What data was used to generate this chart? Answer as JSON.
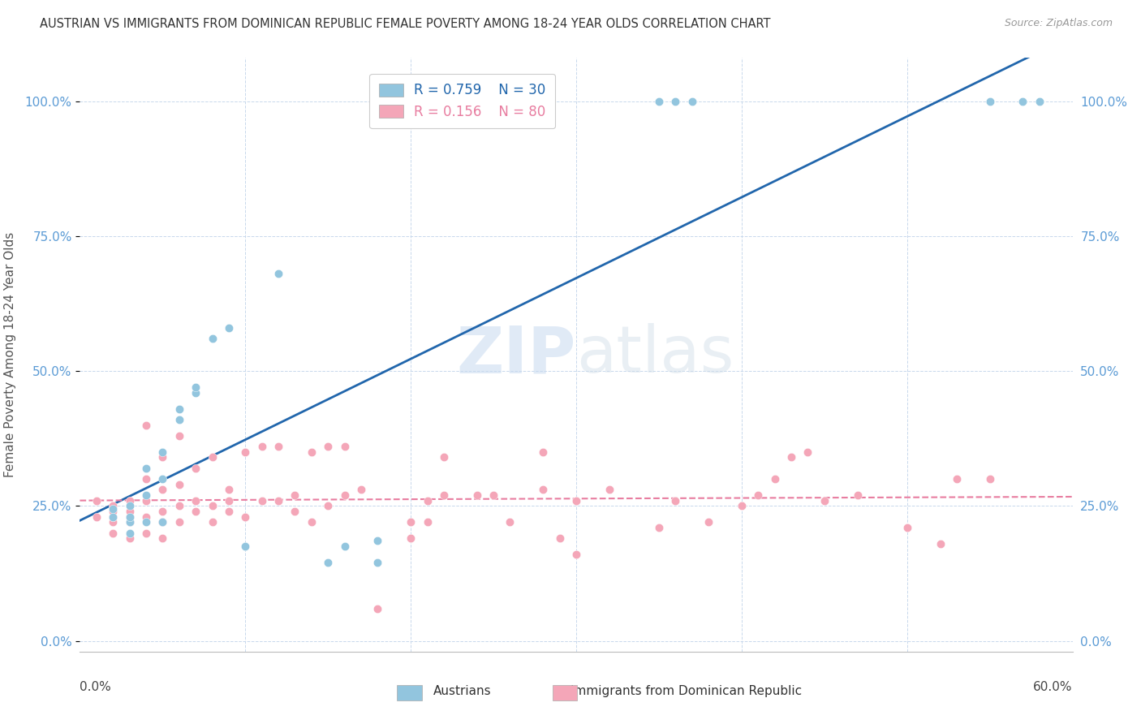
{
  "title": "AUSTRIAN VS IMMIGRANTS FROM DOMINICAN REPUBLIC FEMALE POVERTY AMONG 18-24 YEAR OLDS CORRELATION CHART",
  "source": "Source: ZipAtlas.com",
  "ylabel": "Female Poverty Among 18-24 Year Olds",
  "xlim": [
    0.0,
    0.6
  ],
  "ylim": [
    -0.02,
    1.08
  ],
  "yticks": [
    0.0,
    0.25,
    0.5,
    0.75,
    1.0
  ],
  "ytick_labels": [
    "0.0%",
    "25.0%",
    "50.0%",
    "75.0%",
    "100.0%"
  ],
  "xtick_positions": [
    0.0,
    0.1,
    0.2,
    0.3,
    0.4,
    0.5,
    0.6
  ],
  "blue_color": "#92c5de",
  "pink_color": "#f4a6b8",
  "blue_line_color": "#2166ac",
  "pink_line_color": "#e87da0",
  "legend_r_blue": "R = 0.759",
  "legend_n_blue": "N = 30",
  "legend_r_pink": "R = 0.156",
  "legend_n_pink": "N = 80",
  "watermark_zip": "ZIP",
  "watermark_atlas": "atlas",
  "blue_scatter_x": [
    0.02,
    0.02,
    0.03,
    0.03,
    0.03,
    0.03,
    0.04,
    0.04,
    0.04,
    0.05,
    0.05,
    0.05,
    0.06,
    0.06,
    0.07,
    0.07,
    0.08,
    0.09,
    0.1,
    0.12,
    0.15,
    0.16,
    0.18,
    0.18,
    0.35,
    0.36,
    0.37,
    0.55,
    0.57,
    0.58
  ],
  "blue_scatter_y": [
    0.23,
    0.245,
    0.2,
    0.22,
    0.23,
    0.25,
    0.22,
    0.27,
    0.32,
    0.22,
    0.3,
    0.35,
    0.41,
    0.43,
    0.46,
    0.47,
    0.56,
    0.58,
    0.175,
    0.68,
    0.145,
    0.175,
    0.145,
    0.185,
    1.0,
    1.0,
    1.0,
    1.0,
    1.0,
    1.0
  ],
  "pink_scatter_x": [
    0.01,
    0.01,
    0.02,
    0.02,
    0.02,
    0.02,
    0.02,
    0.03,
    0.03,
    0.03,
    0.03,
    0.03,
    0.04,
    0.04,
    0.04,
    0.04,
    0.04,
    0.05,
    0.05,
    0.05,
    0.05,
    0.05,
    0.06,
    0.06,
    0.06,
    0.06,
    0.07,
    0.07,
    0.07,
    0.08,
    0.08,
    0.08,
    0.09,
    0.09,
    0.09,
    0.1,
    0.1,
    0.11,
    0.11,
    0.12,
    0.12,
    0.13,
    0.13,
    0.14,
    0.14,
    0.15,
    0.15,
    0.16,
    0.16,
    0.17,
    0.18,
    0.2,
    0.2,
    0.21,
    0.21,
    0.22,
    0.22,
    0.24,
    0.25,
    0.26,
    0.28,
    0.28,
    0.29,
    0.3,
    0.3,
    0.32,
    0.35,
    0.36,
    0.38,
    0.4,
    0.41,
    0.42,
    0.43,
    0.44,
    0.45,
    0.47,
    0.5,
    0.52,
    0.53,
    0.55
  ],
  "pink_scatter_y": [
    0.23,
    0.26,
    0.2,
    0.22,
    0.23,
    0.24,
    0.25,
    0.19,
    0.22,
    0.23,
    0.24,
    0.26,
    0.2,
    0.23,
    0.26,
    0.3,
    0.4,
    0.19,
    0.22,
    0.24,
    0.28,
    0.34,
    0.22,
    0.25,
    0.29,
    0.38,
    0.24,
    0.26,
    0.32,
    0.22,
    0.25,
    0.34,
    0.24,
    0.26,
    0.28,
    0.23,
    0.35,
    0.26,
    0.36,
    0.26,
    0.36,
    0.24,
    0.27,
    0.22,
    0.35,
    0.25,
    0.36,
    0.27,
    0.36,
    0.28,
    0.06,
    0.19,
    0.22,
    0.22,
    0.26,
    0.27,
    0.34,
    0.27,
    0.27,
    0.22,
    0.28,
    0.35,
    0.19,
    0.16,
    0.26,
    0.28,
    0.21,
    0.26,
    0.22,
    0.25,
    0.27,
    0.3,
    0.34,
    0.35,
    0.26,
    0.27,
    0.21,
    0.18,
    0.3,
    0.3
  ]
}
